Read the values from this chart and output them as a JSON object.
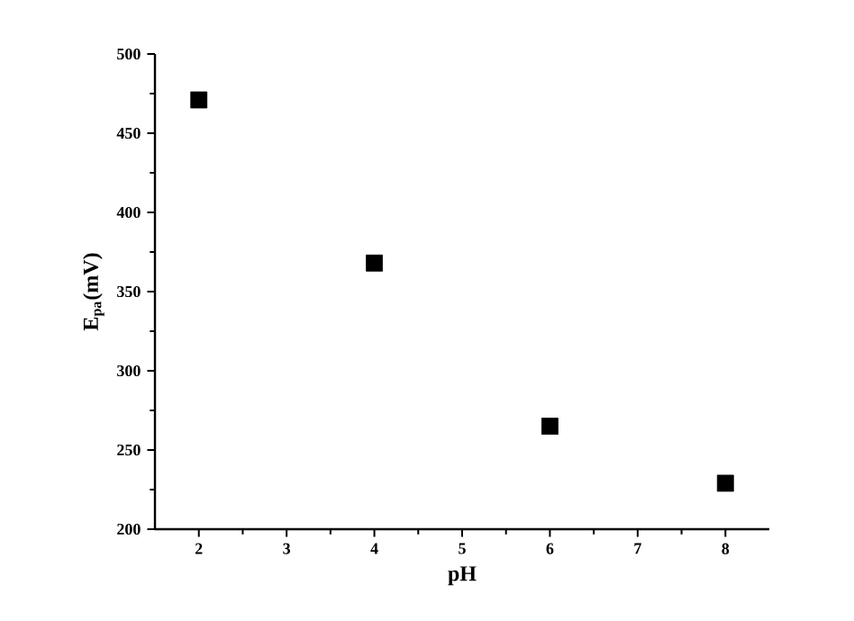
{
  "chart_data": {
    "type": "scatter",
    "xlabel": "pH",
    "ylabel": "E$_{pa}$(mV)",
    "x": [
      2,
      4,
      6,
      8
    ],
    "values": [
      471,
      368,
      265,
      229
    ],
    "color": "#000000",
    "marker": "square",
    "grid": false,
    "xlim": [
      1.5,
      8.5
    ],
    "ylim": [
      200,
      500
    ],
    "xticks": [
      2,
      3,
      4,
      5,
      6,
      7,
      8
    ],
    "yticks": [
      200,
      250,
      300,
      350,
      400,
      450,
      500
    ]
  }
}
